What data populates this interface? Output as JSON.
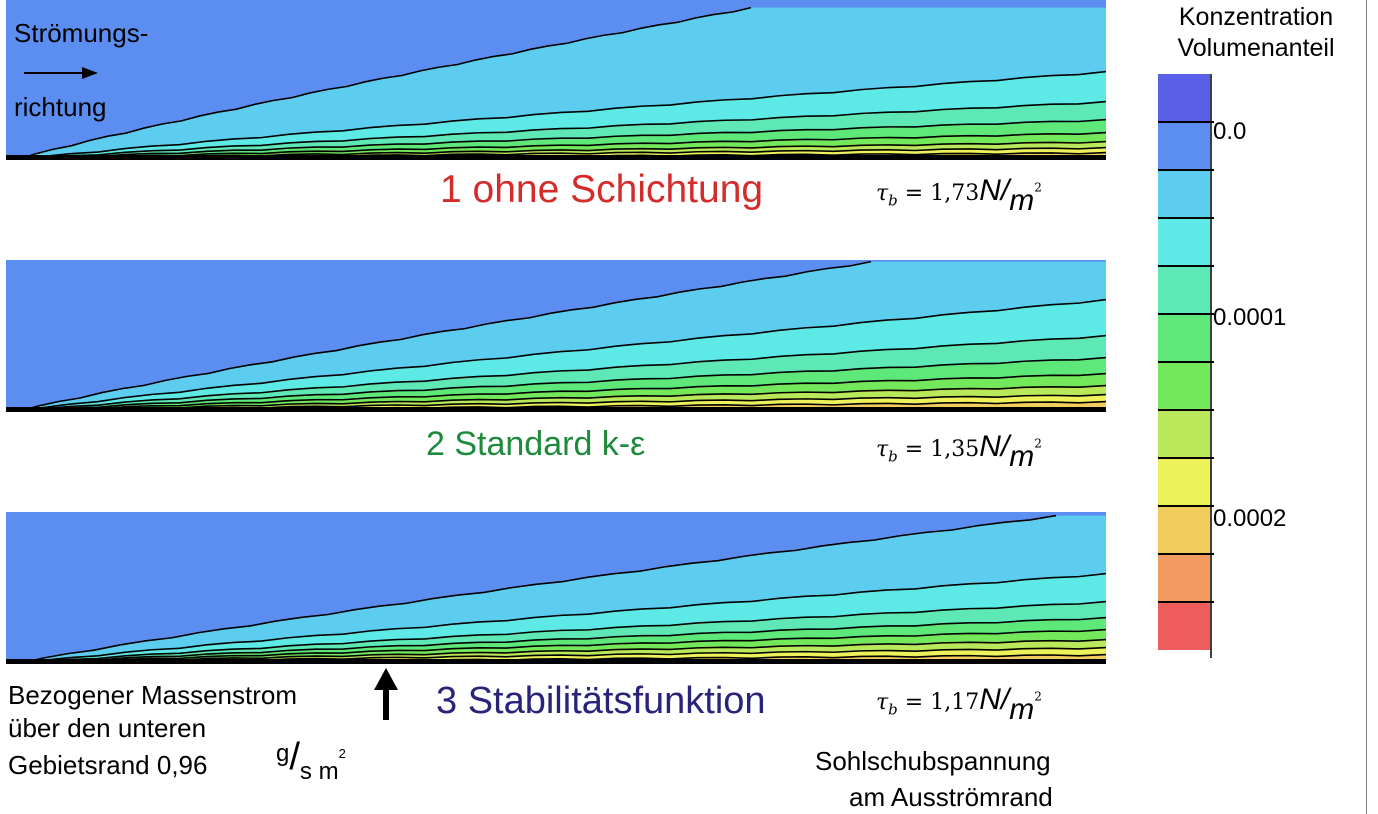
{
  "flow_label": {
    "line1": "Strömungs-",
    "line2": "richtung"
  },
  "panels": [
    {
      "caption": "1 ohne Schichtung",
      "caption_color": "#d42b2b",
      "tau_symbol": "τ",
      "tau_sub": "b",
      "tau_value": "1,73",
      "tau_unit_num": "N",
      "tau_unit_den": "m",
      "tau_unit_exp": "2"
    },
    {
      "caption": "2 Standard k-ε",
      "caption_color": "#1e8a3c",
      "tau_symbol": "τ",
      "tau_sub": "b",
      "tau_value": "1,35",
      "tau_unit_num": "N",
      "tau_unit_den": "m",
      "tau_unit_exp": "2"
    },
    {
      "caption": "3 Stabilitätsfunktion",
      "caption_color": "#2a237a",
      "tau_symbol": "τ",
      "tau_sub": "b",
      "tau_value": "1,17",
      "tau_unit_num": "N",
      "tau_unit_den": "m",
      "tau_unit_exp": "2"
    }
  ],
  "mass_flow": {
    "line1": "Bezogener Massenstrom",
    "line2": "über den unteren",
    "line3": "Gebietsrand 0,96",
    "unit_num": "g",
    "unit_den": "s m",
    "unit_exp": "2"
  },
  "shear_note": {
    "line1": "Sohlschubspannung",
    "line2": "am Ausströmrand"
  },
  "legend": {
    "title_line1": "Konzentration",
    "title_line2": "Volumenanteil",
    "tick_labels": [
      "0.0",
      "0.0001",
      "0.0002"
    ],
    "colors": [
      "#5a5fe8",
      "#5b8ef0",
      "#5ccdef",
      "#5de9e6",
      "#5ee8b6",
      "#5ee87a",
      "#73e85a",
      "#b9e85a",
      "#eef25a",
      "#f2cc5c",
      "#f29a60",
      "#ee5c5c"
    ]
  }
}
